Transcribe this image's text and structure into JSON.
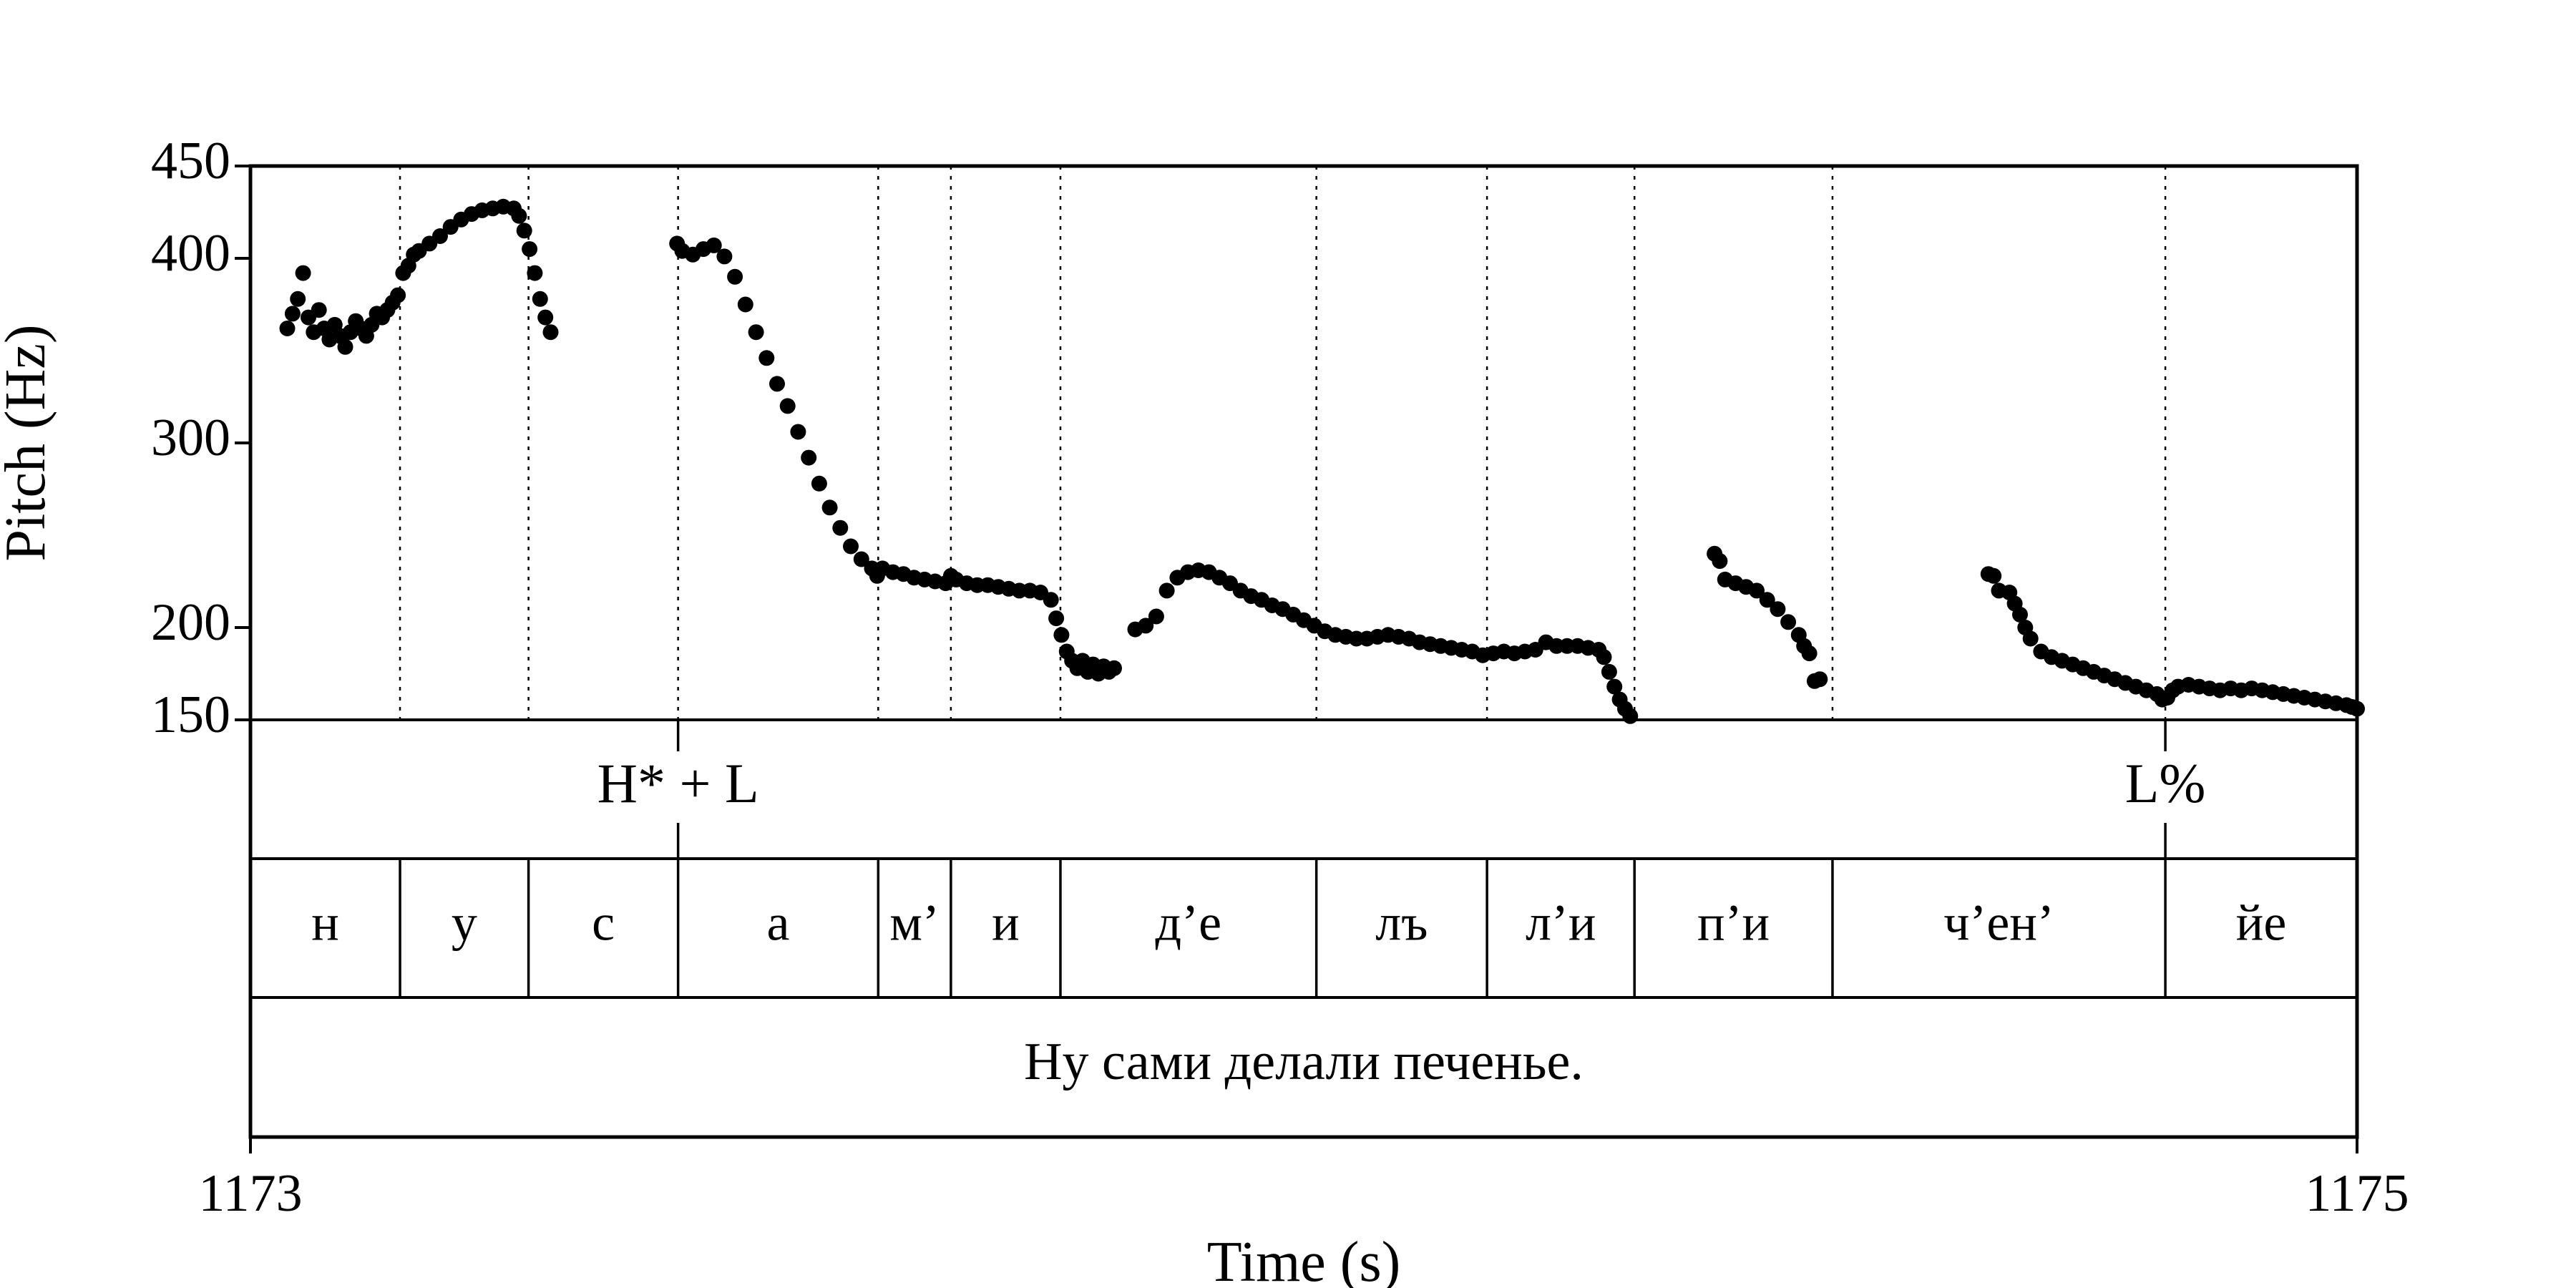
{
  "chart_data": {
    "type": "scatter",
    "title": "",
    "xlabel": "Time (s)",
    "ylabel": "Pitch (Hz)",
    "xlim": [
      1173,
      1175
    ],
    "ylim": [
      150,
      450
    ],
    "x_ticks": [
      1173,
      1175
    ],
    "y_ticks": [
      150,
      200,
      300,
      400,
      450
    ],
    "x_tick_labels": [
      "1173",
      "1175"
    ],
    "y_tick_labels": [
      "150",
      "200",
      "300",
      "400",
      "450"
    ],
    "grid": false,
    "segment_boundaries": [
      1173.142,
      1173.264,
      1173.406,
      1173.596,
      1173.665,
      1173.769,
      1174.012,
      1174.174,
      1174.314,
      1174.502,
      1174.818
    ],
    "tone_tier": [
      {
        "label": "H* + L",
        "time": 1173.406
      },
      {
        "label": "L%",
        "time": 1174.818
      }
    ],
    "segment_tier": [
      {
        "label": "н",
        "start": 1173.0,
        "end": 1173.142
      },
      {
        "label": "у",
        "start": 1173.142,
        "end": 1173.264
      },
      {
        "label": "с",
        "start": 1173.264,
        "end": 1173.406
      },
      {
        "label": "а",
        "start": 1173.406,
        "end": 1173.596
      },
      {
        "label": "м’",
        "start": 1173.596,
        "end": 1173.665
      },
      {
        "label": "и",
        "start": 1173.665,
        "end": 1173.769
      },
      {
        "label": "д’е",
        "start": 1173.769,
        "end": 1174.012
      },
      {
        "label": "лъ",
        "start": 1174.012,
        "end": 1174.174
      },
      {
        "label": "л’и",
        "start": 1174.174,
        "end": 1174.314
      },
      {
        "label": "п’и",
        "start": 1174.314,
        "end": 1174.502
      },
      {
        "label": "ч’ен’",
        "start": 1174.502,
        "end": 1174.818
      },
      {
        "label": "йе",
        "start": 1174.818,
        "end": 1175.0
      }
    ],
    "sentence_tier": [
      {
        "label": "Ну сами делали печенье.",
        "start": 1173.0,
        "end": 1175.0
      }
    ],
    "series": [
      {
        "points": [
          [
            1173.035,
            362
          ],
          [
            1173.04,
            370
          ],
          [
            1173.045,
            378
          ],
          [
            1173.05,
            392
          ],
          [
            1173.055,
            368
          ],
          [
            1173.06,
            360
          ],
          [
            1173.065,
            372
          ],
          [
            1173.07,
            362
          ],
          [
            1173.075,
            356
          ],
          [
            1173.08,
            364
          ],
          [
            1173.085,
            358
          ],
          [
            1173.09,
            352
          ],
          [
            1173.095,
            360
          ],
          [
            1173.1,
            366
          ],
          [
            1173.105,
            362
          ],
          [
            1173.11,
            358
          ],
          [
            1173.115,
            364
          ],
          [
            1173.12,
            370
          ],
          [
            1173.125,
            368
          ],
          [
            1173.13,
            372
          ],
          [
            1173.135,
            376
          ],
          [
            1173.14,
            380
          ],
          [
            1173.145,
            392
          ],
          [
            1173.15,
            396
          ],
          [
            1173.155,
            402
          ],
          [
            1173.16,
            404
          ],
          [
            1173.17,
            408
          ],
          [
            1173.18,
            412
          ],
          [
            1173.19,
            417
          ],
          [
            1173.2,
            421
          ],
          [
            1173.21,
            424
          ],
          [
            1173.22,
            426
          ],
          [
            1173.23,
            427
          ],
          [
            1173.24,
            428
          ],
          [
            1173.25,
            427
          ],
          [
            1173.255,
            423
          ],
          [
            1173.26,
            415
          ],
          [
            1173.265,
            405
          ],
          [
            1173.27,
            392
          ],
          [
            1173.275,
            378
          ],
          [
            1173.28,
            368
          ],
          [
            1173.285,
            360
          ],
          [
            1173.405,
            408
          ],
          [
            1173.41,
            404
          ],
          [
            1173.42,
            402
          ],
          [
            1173.43,
            405
          ],
          [
            1173.44,
            407
          ],
          [
            1173.45,
            401
          ],
          [
            1173.46,
            390
          ],
          [
            1173.47,
            375
          ],
          [
            1173.48,
            360
          ],
          [
            1173.49,
            346
          ],
          [
            1173.5,
            332
          ],
          [
            1173.51,
            320
          ],
          [
            1173.52,
            306
          ],
          [
            1173.53,
            292
          ],
          [
            1173.54,
            278
          ],
          [
            1173.55,
            265
          ],
          [
            1173.56,
            254
          ],
          [
            1173.57,
            244
          ],
          [
            1173.58,
            237
          ],
          [
            1173.59,
            232
          ],
          [
            1173.595,
            228
          ],
          [
            1173.6,
            232
          ],
          [
            1173.61,
            230
          ],
          [
            1173.62,
            229
          ],
          [
            1173.63,
            227
          ],
          [
            1173.64,
            226
          ],
          [
            1173.65,
            225
          ],
          [
            1173.66,
            224
          ],
          [
            1173.665,
            228
          ],
          [
            1173.67,
            226
          ],
          [
            1173.68,
            224
          ],
          [
            1173.69,
            223
          ],
          [
            1173.7,
            223
          ],
          [
            1173.71,
            222
          ],
          [
            1173.72,
            221
          ],
          [
            1173.73,
            220
          ],
          [
            1173.74,
            220
          ],
          [
            1173.75,
            219
          ],
          [
            1173.76,
            215
          ],
          [
            1173.765,
            205
          ],
          [
            1173.77,
            196
          ],
          [
            1173.775,
            187
          ],
          [
            1173.78,
            182
          ],
          [
            1173.785,
            178
          ],
          [
            1173.79,
            182
          ],
          [
            1173.795,
            176
          ],
          [
            1173.8,
            180
          ],
          [
            1173.805,
            175
          ],
          [
            1173.81,
            179
          ],
          [
            1173.815,
            176
          ],
          [
            1173.82,
            178
          ],
          [
            1173.84,
            199
          ],
          [
            1173.85,
            201
          ],
          [
            1173.86,
            206
          ],
          [
            1173.87,
            220
          ],
          [
            1173.88,
            227
          ],
          [
            1173.89,
            230
          ],
          [
            1173.9,
            231
          ],
          [
            1173.91,
            230
          ],
          [
            1173.92,
            227
          ],
          [
            1173.93,
            224
          ],
          [
            1173.94,
            220
          ],
          [
            1173.95,
            217
          ],
          [
            1173.96,
            215
          ],
          [
            1173.97,
            212
          ],
          [
            1173.98,
            210
          ],
          [
            1173.99,
            207
          ],
          [
            1174.0,
            204
          ],
          [
            1174.01,
            201
          ],
          [
            1174.02,
            198
          ],
          [
            1174.03,
            196
          ],
          [
            1174.04,
            195
          ],
          [
            1174.05,
            194
          ],
          [
            1174.06,
            194
          ],
          [
            1174.07,
            195
          ],
          [
            1174.08,
            196
          ],
          [
            1174.09,
            195
          ],
          [
            1174.1,
            194
          ],
          [
            1174.11,
            192
          ],
          [
            1174.12,
            191
          ],
          [
            1174.13,
            190
          ],
          [
            1174.14,
            189
          ],
          [
            1174.15,
            188
          ],
          [
            1174.16,
            187
          ],
          [
            1174.17,
            185
          ],
          [
            1174.18,
            186
          ],
          [
            1174.19,
            187
          ],
          [
            1174.2,
            186
          ],
          [
            1174.21,
            187
          ],
          [
            1174.22,
            188
          ],
          [
            1174.23,
            192
          ],
          [
            1174.24,
            190
          ],
          [
            1174.25,
            190
          ],
          [
            1174.26,
            190
          ],
          [
            1174.27,
            189
          ],
          [
            1174.28,
            188
          ],
          [
            1174.285,
            184
          ],
          [
            1174.29,
            176
          ],
          [
            1174.295,
            168
          ],
          [
            1174.3,
            161
          ],
          [
            1174.305,
            156
          ],
          [
            1174.31,
            152
          ],
          [
            1174.39,
            240
          ],
          [
            1174.395,
            236
          ],
          [
            1174.4,
            226
          ],
          [
            1174.41,
            224
          ],
          [
            1174.42,
            222
          ],
          [
            1174.43,
            220
          ],
          [
            1174.44,
            215
          ],
          [
            1174.45,
            210
          ],
          [
            1174.46,
            203
          ],
          [
            1174.47,
            196
          ],
          [
            1174.475,
            190
          ],
          [
            1174.48,
            186
          ],
          [
            1174.485,
            171
          ],
          [
            1174.49,
            172
          ],
          [
            1174.65,
            229
          ],
          [
            1174.655,
            228
          ],
          [
            1174.66,
            220
          ],
          [
            1174.67,
            219
          ],
          [
            1174.675,
            213
          ],
          [
            1174.68,
            207
          ],
          [
            1174.685,
            200
          ],
          [
            1174.69,
            194
          ],
          [
            1174.7,
            187
          ],
          [
            1174.71,
            184
          ],
          [
            1174.72,
            182
          ],
          [
            1174.73,
            180
          ],
          [
            1174.74,
            178
          ],
          [
            1174.75,
            176
          ],
          [
            1174.76,
            174
          ],
          [
            1174.77,
            172
          ],
          [
            1174.78,
            170
          ],
          [
            1174.79,
            168
          ],
          [
            1174.8,
            166
          ],
          [
            1174.81,
            164
          ],
          [
            1174.815,
            161
          ],
          [
            1174.82,
            162
          ],
          [
            1174.825,
            166
          ],
          [
            1174.83,
            168
          ],
          [
            1174.84,
            169
          ],
          [
            1174.85,
            168
          ],
          [
            1174.86,
            167
          ],
          [
            1174.87,
            166
          ],
          [
            1174.88,
            167
          ],
          [
            1174.89,
            166
          ],
          [
            1174.9,
            167
          ],
          [
            1174.91,
            166
          ],
          [
            1174.92,
            165
          ],
          [
            1174.93,
            164
          ],
          [
            1174.94,
            163
          ],
          [
            1174.95,
            162
          ],
          [
            1174.96,
            161
          ],
          [
            1174.97,
            160
          ],
          [
            1174.98,
            159
          ],
          [
            1174.99,
            158
          ],
          [
            1174.995,
            157
          ],
          [
            1175.0,
            156
          ]
        ]
      }
    ]
  }
}
